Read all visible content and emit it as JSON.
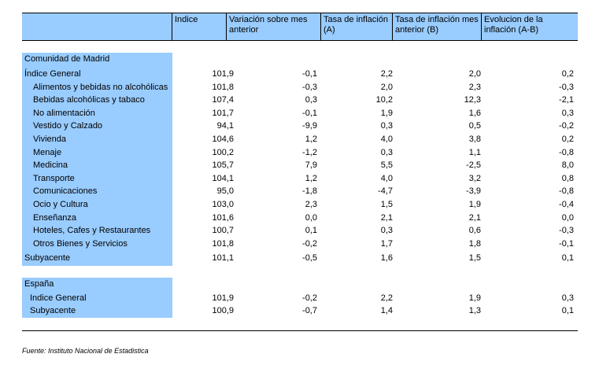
{
  "headers": [
    "",
    "Indice",
    "Variación sobre mes anterior",
    "Tasa de inflación (A)",
    "Tasa de inflación mes anterior (B)",
    "Evolucion de la inflación (A-B)"
  ],
  "madrid": {
    "title": "Comunidad de Madrid",
    "rows": [
      {
        "label": "Índice General",
        "values": [
          "101,9",
          "-0,1",
          "2,2",
          "2,0",
          "0,2"
        ]
      },
      {
        "label": "Alimentos y bebidas no alcohólicas",
        "values": [
          "101,8",
          "-0,3",
          "2,0",
          "2,3",
          "-0,3"
        ]
      },
      {
        "label": "Bebidas alcohólicas y tabaco",
        "values": [
          "107,4",
          "0,3",
          "10,2",
          "12,3",
          "-2,1"
        ]
      },
      {
        "label": "No alimentación",
        "values": [
          "101,7",
          "-0,1",
          "1,9",
          "1,6",
          "0,3"
        ]
      },
      {
        "label": "Vestido y Calzado",
        "values": [
          "94,1",
          "-9,9",
          "0,3",
          "0,5",
          "-0,2"
        ]
      },
      {
        "label": "Vivienda",
        "values": [
          "104,6",
          "1,2",
          "4,0",
          "3,8",
          "0,2"
        ]
      },
      {
        "label": "Menaje",
        "values": [
          "100,2",
          "-1,2",
          "0,3",
          "1,1",
          "-0,8"
        ]
      },
      {
        "label": "Medicina",
        "values": [
          "105,7",
          "7,9",
          "5,5",
          "-2,5",
          "8,0"
        ]
      },
      {
        "label": "Transporte",
        "values": [
          "104,1",
          "1,2",
          "4,0",
          "3,2",
          "0,8"
        ]
      },
      {
        "label": "Comunicaciones",
        "values": [
          "95,0",
          "-1,8",
          "-4,7",
          "-3,9",
          "-0,8"
        ]
      },
      {
        "label": "Ocio y Cultura",
        "values": [
          "103,0",
          "2,3",
          "1,5",
          "1,9",
          "-0,4"
        ]
      },
      {
        "label": "Enseñanza",
        "values": [
          "101,6",
          "0,0",
          "2,1",
          "2,1",
          "0,0"
        ]
      },
      {
        "label": "Hoteles, Cafes y Restaurantes",
        "values": [
          "100,7",
          "0,1",
          "0,3",
          "0,6",
          "-0,3"
        ]
      },
      {
        "label": "Otros Bienes y Servicios",
        "values": [
          "101,8",
          "-0,2",
          "1,7",
          "1,8",
          "-0,1"
        ]
      },
      {
        "label": "Subyacente",
        "values": [
          "101,1",
          "-0,5",
          "1,6",
          "1,5",
          "0,1"
        ]
      }
    ]
  },
  "spain": {
    "title": "España",
    "rows": [
      {
        "label": "Indice General",
        "values": [
          "101,9",
          "-0,2",
          "2,2",
          "1,9",
          "0,3"
        ]
      },
      {
        "label": "Subyacente",
        "values": [
          "100,9",
          "-0,7",
          "1,4",
          "1,3",
          "0,1"
        ]
      }
    ]
  },
  "source": "Fuente: Instituto Nacional de Estadistica"
}
